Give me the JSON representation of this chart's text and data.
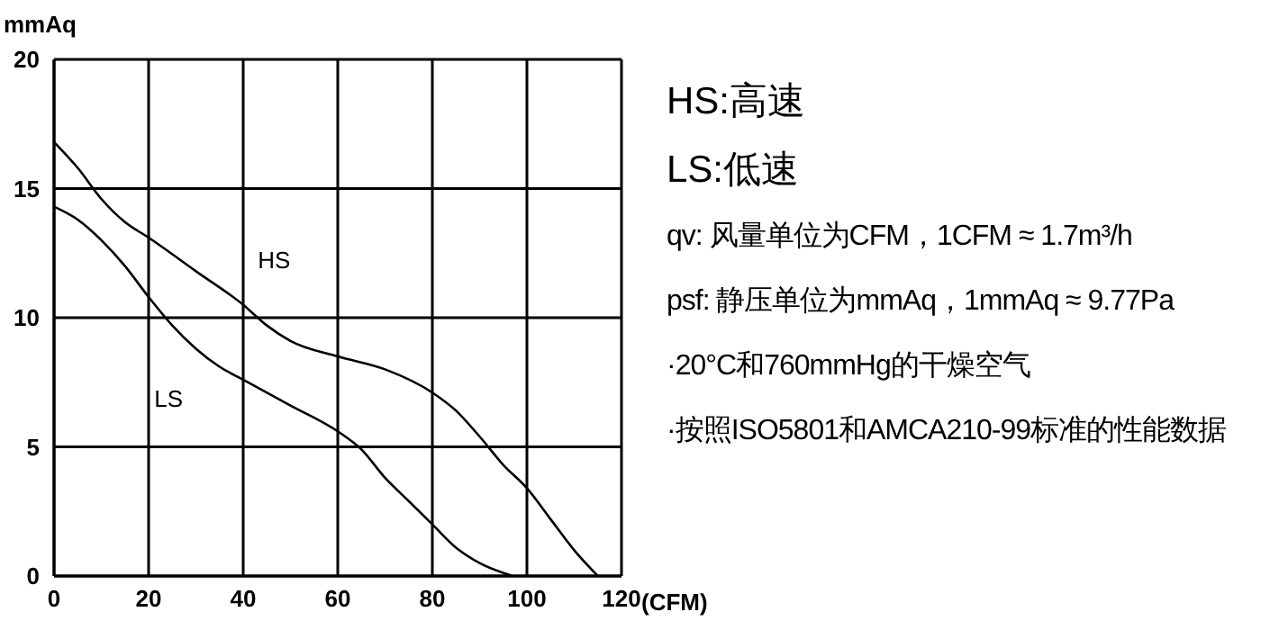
{
  "chart_data": {
    "type": "line",
    "xlabel": "(CFM)",
    "ylabel": "mmAq",
    "xlim": [
      0,
      120
    ],
    "xticks": [
      0,
      20,
      40,
      60,
      80,
      100,
      120
    ],
    "ylim": [
      0,
      20
    ],
    "yticks": [
      0,
      5,
      10,
      15,
      20
    ],
    "grid": true,
    "marker": "none",
    "line_style": "solid",
    "series": [
      {
        "name": "HS",
        "color": "#000000",
        "x": [
          0,
          5,
          10,
          15,
          20,
          30,
          40,
          45,
          50,
          60,
          70,
          80,
          85,
          90,
          95,
          100,
          105,
          110,
          115
        ],
        "values": [
          16.8,
          15.8,
          14.6,
          13.7,
          13.1,
          11.8,
          10.5,
          9.7,
          9.1,
          8.5,
          8.0,
          7.1,
          6.4,
          5.4,
          4.3,
          3.4,
          2.2,
          1.0,
          0
        ]
      },
      {
        "name": "LS",
        "color": "#000000",
        "x": [
          0,
          5,
          10,
          15,
          20,
          25,
          30,
          35,
          40,
          50,
          60,
          65,
          70,
          75,
          80,
          85,
          90,
          97
        ],
        "values": [
          14.3,
          13.8,
          13.0,
          12.0,
          10.8,
          9.7,
          8.8,
          8.1,
          7.6,
          6.6,
          5.6,
          4.9,
          3.8,
          2.9,
          2.0,
          1.1,
          0.5,
          0
        ]
      }
    ],
    "annotations": [
      "HS:高速",
      "LS:低速",
      "qv: 风量单位为CFM，1CFM ≈ 1.7m³/h",
      "psf: 静压单位为mmAq，1mmAq ≈ 9.77Pa",
      "·20°C和760mmHg的干燥空气",
      "·按照ISO5801和AMCA210-99标准的性能数据"
    ]
  }
}
